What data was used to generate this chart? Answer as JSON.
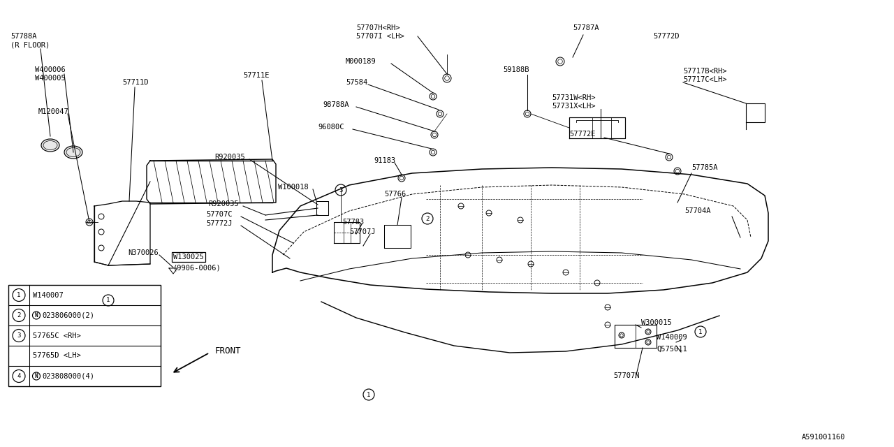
{
  "bg_color": "#ffffff",
  "line_color": "#000000",
  "part_number_bottom": "A591001160",
  "legend_rows": [
    {
      "num": "1",
      "part": "W140007",
      "has_N": false
    },
    {
      "num": "2",
      "part": "N023806000(2)",
      "has_N": true
    },
    {
      "num": "3",
      "part": "57765C <RH>",
      "has_N": false
    },
    {
      "num": "",
      "part": "57765D <LH>",
      "has_N": false
    },
    {
      "num": "4",
      "part": "N023808000(4)",
      "has_N": true
    }
  ]
}
